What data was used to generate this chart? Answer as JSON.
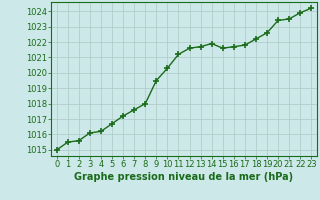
{
  "x": [
    0,
    1,
    2,
    3,
    4,
    5,
    6,
    7,
    8,
    9,
    10,
    11,
    12,
    13,
    14,
    15,
    16,
    17,
    18,
    19,
    20,
    21,
    22,
    23
  ],
  "y": [
    1015.0,
    1015.5,
    1015.6,
    1016.1,
    1016.2,
    1016.7,
    1017.2,
    1017.6,
    1018.0,
    1019.5,
    1020.3,
    1021.2,
    1021.6,
    1021.7,
    1021.9,
    1021.6,
    1021.7,
    1021.8,
    1022.2,
    1022.6,
    1023.4,
    1023.5,
    1023.9,
    1024.2
  ],
  "line_color": "#1a6b1a",
  "marker": "+",
  "marker_size": 4,
  "bg_color": "#cce8e8",
  "grid_color": "#aec8c8",
  "xlabel": "Graphe pression niveau de la mer (hPa)",
  "xlabel_fontsize": 7,
  "ytick_min": 1015,
  "ytick_max": 1024,
  "ytick_step": 1,
  "xtick_labels": [
    "0",
    "1",
    "2",
    "3",
    "4",
    "5",
    "6",
    "7",
    "8",
    "9",
    "10",
    "11",
    "12",
    "13",
    "14",
    "15",
    "16",
    "17",
    "18",
    "19",
    "20",
    "21",
    "22",
    "23"
  ],
  "ylim": [
    1014.6,
    1024.6
  ],
  "xlim": [
    -0.5,
    23.5
  ],
  "tick_fontsize": 6,
  "line_width": 1.0
}
